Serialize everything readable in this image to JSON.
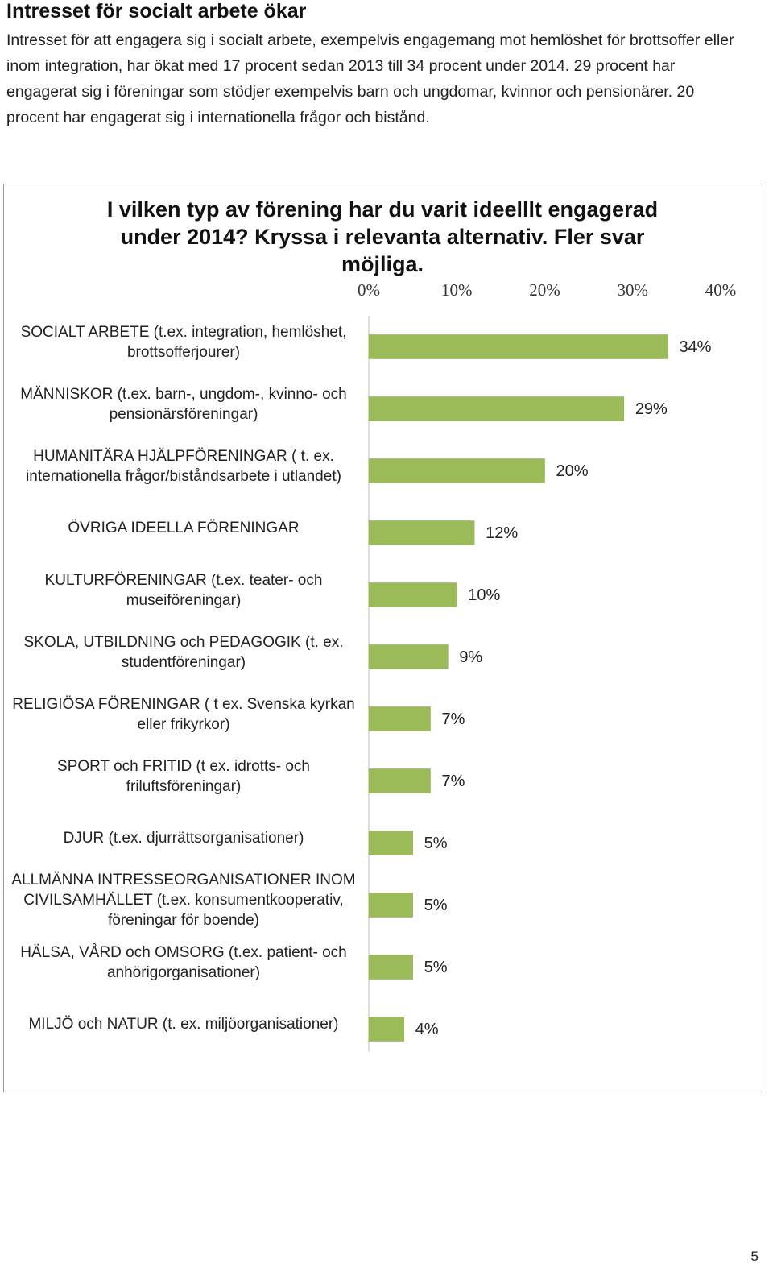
{
  "title": "Intresset för socialt arbete ökar",
  "intro": "Intresset för att engagera sig i socialt arbete, exempelvis engagemang mot hemlöshet för brottsoffer eller inom integration, har ökat med 17 procent sedan 2013 till 34 procent under 2014. 29 procent har engagerat sig i föreningar som stödjer exempelvis barn och ungdomar, kvinnor och pensionärer. 20 procent har engagerat sig i internationella frågor och bistånd.",
  "chart_data": {
    "type": "bar",
    "orientation": "horizontal",
    "title": "I vilken typ av förening har du varit ideelllt engagerad under 2014? Kryssa i relevanta alternativ. Fler svar möjliga.",
    "categories": [
      "SOCIALT ARBETE (t.ex. integration, hemlöshet, brottsofferjourer)",
      "MÄNNISKOR (t.ex. barn-, ungdom-, kvinno- och pensionärsföreningar)",
      "HUMANITÄRA HJÄLPFÖRENINGAR ( t. ex. internationella frågor/biståndsarbete i utlandet)",
      "ÖVRIGA IDEELLA FÖRENINGAR",
      "KULTURFÖRENINGAR (t.ex. teater- och museiföreningar)",
      "SKOLA, UTBILDNING och PEDAGOGIK (t. ex. studentföreningar)",
      "RELIGIÖSA FÖRENINGAR ( t ex. Svenska kyrkan eller frikyrkor)",
      "SPORT och FRITID (t ex. idrotts- och friluftsföreningar)",
      "DJUR (t.ex. djurrättsorganisationer)",
      "ALLMÄNNA INTRESSEORGANISATIONER INOM CIVILSAMHÄLLET (t.ex. konsumentkooperativ, föreningar för boende)",
      "HÄLSA, VÅRD och OMSORG (t.ex. patient- och anhörigorganisationer)",
      "MILJÖ och NATUR (t. ex. miljöorganisationer)"
    ],
    "values": [
      34,
      29,
      20,
      12,
      10,
      9,
      7,
      7,
      5,
      5,
      5,
      4
    ],
    "value_labels": [
      "34%",
      "29%",
      "20%",
      "12%",
      "10%",
      "9%",
      "7%",
      "7%",
      "5%",
      "5%",
      "5%",
      "4%"
    ],
    "color": "#9bbb59",
    "xlim": [
      0,
      40
    ],
    "xticks": [
      {
        "value": 0,
        "label": "0%"
      },
      {
        "value": 10,
        "label": "10%"
      },
      {
        "value": 20,
        "label": "20%"
      },
      {
        "value": 30,
        "label": "30%"
      },
      {
        "value": 40,
        "label": "40%"
      }
    ]
  },
  "page_number": "5"
}
